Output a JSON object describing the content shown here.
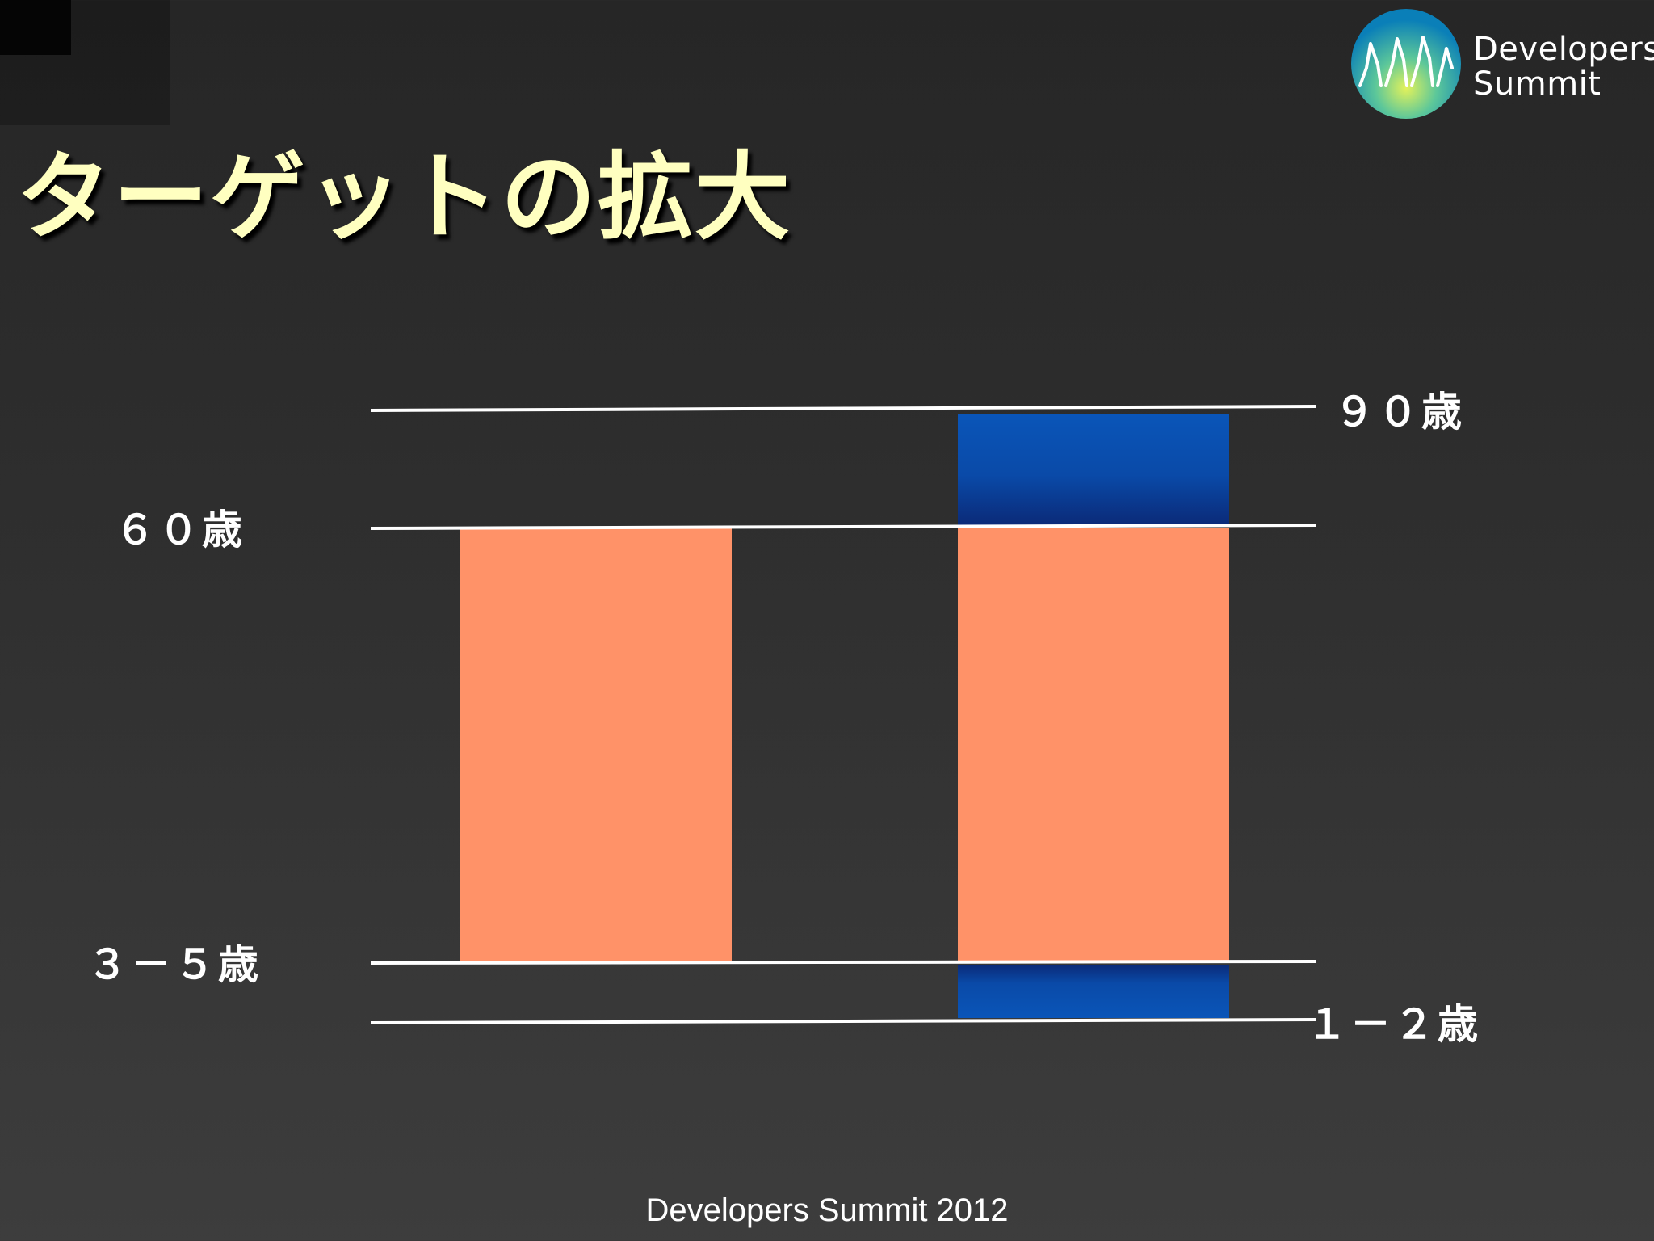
{
  "slide": {
    "title": "ターゲットの拡大",
    "footer": "Developers Summit 2012"
  },
  "logo": {
    "text": "Developers\nSummit",
    "colors": {
      "outer": "#0a7fb8",
      "mid": "#2eb5a0",
      "inner": "#d8ec4a"
    }
  },
  "diagram": {
    "age_labels": {
      "age_90": "９０歳",
      "age_60": "６０歳",
      "age_3_5": "３－５歳",
      "age_1_2": "１－２歳"
    },
    "bars": [
      {
        "name": "current-target",
        "ranges": [
          {
            "from": "３－５歳",
            "to": "６０歳",
            "color": "#ff9268"
          }
        ]
      },
      {
        "name": "expanded-target",
        "ranges": [
          {
            "from": "６０歳",
            "to": "９０歳",
            "color": "#0a4aa8"
          },
          {
            "from": "３－５歳",
            "to": "６０歳",
            "color": "#ff9268"
          },
          {
            "from": "１－２歳",
            "to": "３－５歳",
            "color": "#0a4aa8"
          }
        ]
      }
    ],
    "colors": {
      "existing": "#ff9268",
      "extension": "#0a4aa8",
      "lines": "#ffffff",
      "title": "#ffffc0"
    }
  }
}
